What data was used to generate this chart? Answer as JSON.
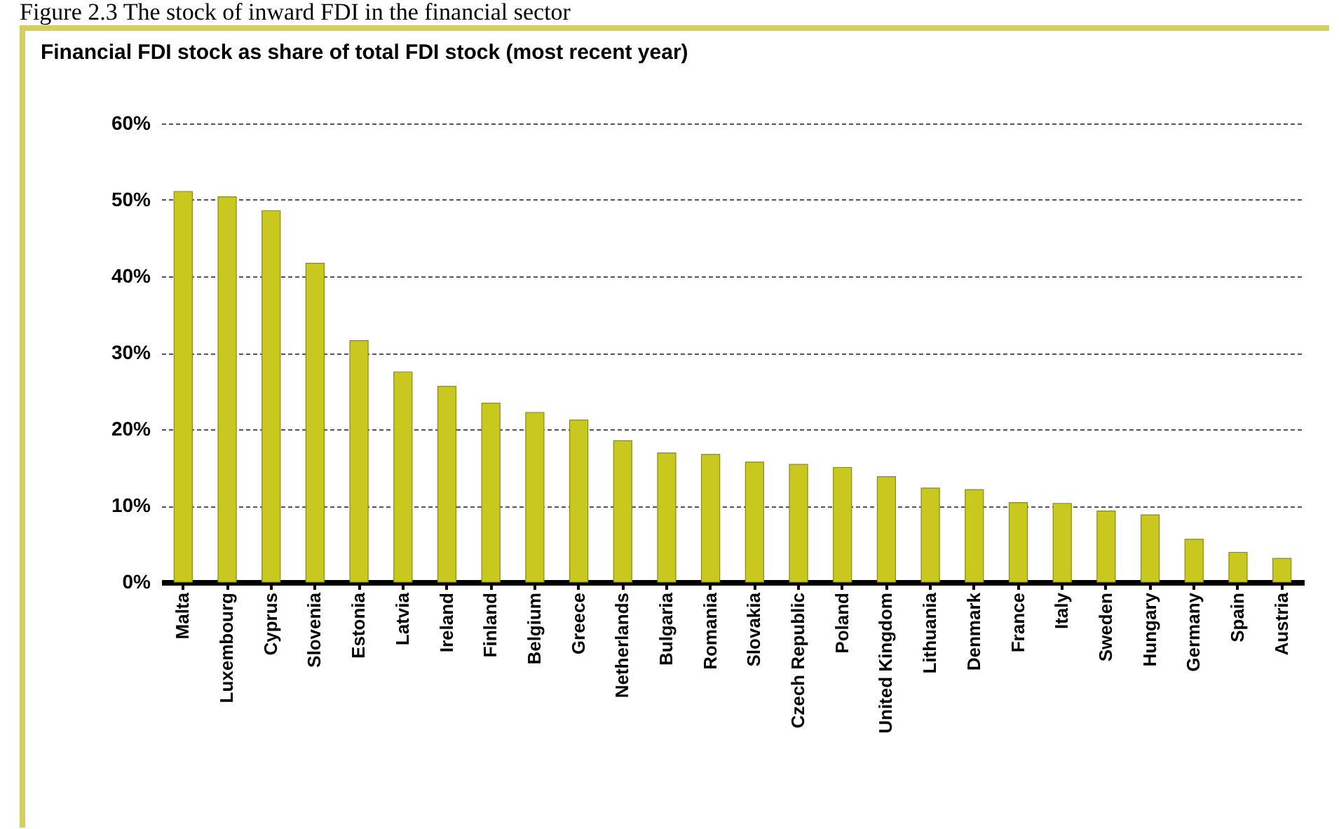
{
  "chart_data": {
    "type": "bar",
    "title": "Figure 2.3 The stock of inward FDI in the financial sector",
    "subtitle": "Financial FDI stock as share of total FDI stock (most recent year)",
    "categories": [
      "Malta",
      "Luxembourg",
      "Cyprus",
      "Slovenia",
      "Estonia",
      "Latvia",
      "Ireland",
      "Finland",
      "Belgium",
      "Greece",
      "Netherlands",
      "Bulgaria",
      "Romania",
      "Slovakia",
      "Czech Republic",
      "Poland",
      "United Kingdom",
      "Lithuania",
      "Denmark",
      "France",
      "Italy",
      "Sweden",
      "Hungary",
      "Germany",
      "Spain",
      "Austria"
    ],
    "values": [
      51.1,
      50.4,
      48.6,
      41.7,
      31.6,
      27.5,
      25.6,
      23.4,
      22.2,
      21.2,
      18.5,
      16.9,
      16.7,
      15.7,
      15.4,
      15.0,
      13.8,
      12.3,
      12.1,
      10.4,
      10.3,
      9.3,
      8.8,
      5.6,
      3.9,
      3.1
    ],
    "color": "#c8c81e",
    "ylim": [
      0,
      60
    ],
    "yticks": [
      {
        "value": 0,
        "label": "0%"
      },
      {
        "value": 10,
        "label": "10%"
      },
      {
        "value": 20,
        "label": "20%"
      },
      {
        "value": 30,
        "label": "30%"
      },
      {
        "value": 40,
        "label": "40%"
      },
      {
        "value": 50,
        "label": "50%"
      },
      {
        "value": 60,
        "label": "60%"
      }
    ],
    "grid": "y"
  }
}
